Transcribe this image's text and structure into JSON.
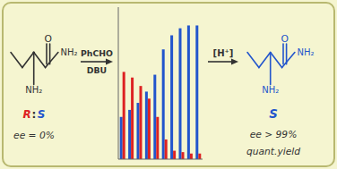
{
  "chart_data": {
    "type": "bar",
    "categories": [
      null,
      null,
      null,
      null,
      null,
      null,
      null,
      null,
      null,
      null
    ],
    "series": [
      {
        "color": "#2255cc",
        "values": [
          0.3,
          0.35,
          0.4,
          0.48,
          0.6,
          0.78,
          0.88,
          0.93,
          0.95,
          0.95
        ]
      },
      {
        "color": "#dd2222",
        "values": [
          0.62,
          0.58,
          0.52,
          0.43,
          0.3,
          0.14,
          0.06,
          0.05,
          0.04,
          0.04
        ]
      }
    ],
    "ylim": [
      0,
      1.08
    ],
    "grid": false,
    "tick_labels": false,
    "annotations": [
      {
        "text": "O",
        "color": "#333333"
      },
      {
        "text": "NH₂",
        "color": "#333333"
      },
      {
        "text": "NH₂",
        "color": "#333333"
      },
      {
        "text": "PhCHO",
        "color": "#333333"
      },
      {
        "text": "DBU",
        "color": "#333333"
      },
      {
        "text": "R",
        "color": "#dd2222"
      },
      {
        "text": ":",
        "color": "#333333"
      },
      {
        "text": "S",
        "color": "#2255cc"
      },
      {
        "text": "ee = 0%",
        "color": "#333333"
      },
      {
        "text": "[H⁺]",
        "color": "#333333"
      },
      {
        "text": "O",
        "color": "#2255cc"
      },
      {
        "text": "NH₂",
        "color": "#2255cc"
      },
      {
        "text": "NH₂",
        "color": "#2255cc"
      },
      {
        "text": "S",
        "color": "#2255cc"
      },
      {
        "text": "ee > 99%",
        "color": "#333333"
      },
      {
        "text": "quant.yield",
        "color": "#333333"
      }
    ]
  }
}
